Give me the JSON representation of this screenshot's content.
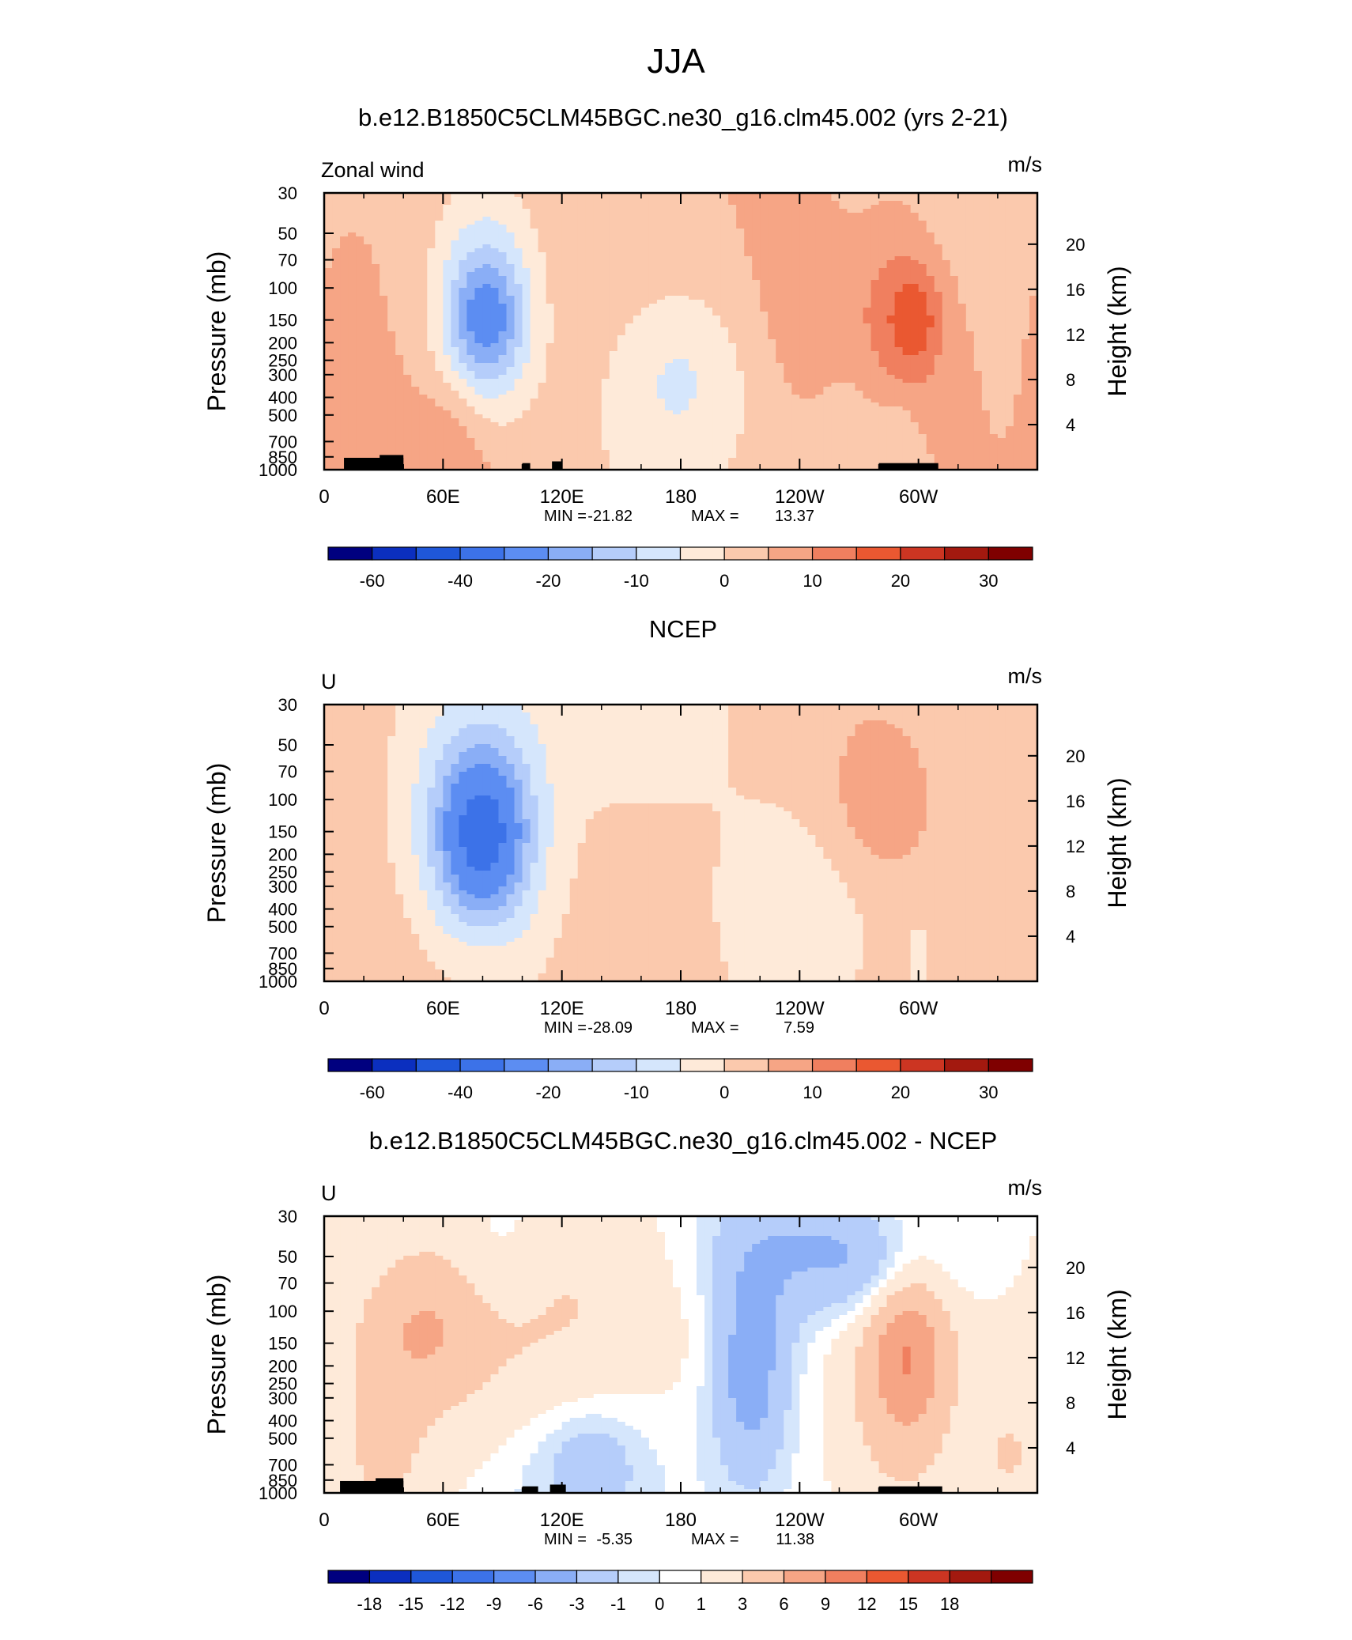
{
  "figure": {
    "title": "JJA"
  },
  "palettes": {
    "full": [
      "#00007f",
      "#0b2fbf",
      "#1f57d9",
      "#3c72e8",
      "#5c8df2",
      "#8aaef6",
      "#b5cdfa",
      "#d5e6fc",
      "#feead9",
      "#fbc9ad",
      "#f6a585",
      "#f07f5f",
      "#ea5831",
      "#cc3522",
      "#a3190f",
      "#7f0000"
    ],
    "diff": [
      "#00007f",
      "#0b2fbf",
      "#1f57d9",
      "#3c72e8",
      "#5c8df2",
      "#8aaef6",
      "#b5cdfa",
      "#d5e6fc",
      "#ffffff",
      "#feead9",
      "#fbc9ad",
      "#f6a585",
      "#f07f5f",
      "#ea5831",
      "#cc3522",
      "#a3190f",
      "#7f0000"
    ]
  },
  "axes": {
    "x_ticks": [
      "0",
      "60E",
      "120E",
      "180",
      "120W",
      "60W"
    ],
    "pressure_ticks": [
      "30",
      "50",
      "70",
      "100",
      "150",
      "200",
      "250",
      "300",
      "400",
      "500",
      "700",
      "850",
      "1000"
    ],
    "height_ticks": [
      "20",
      "16",
      "12",
      "8",
      "4"
    ],
    "ylabel_left": "Pressure (mb)",
    "ylabel_right": "Height (km)",
    "units": "m/s",
    "min_label": "MIN =",
    "max_label": "MAX ="
  },
  "chart_data": [
    {
      "type": "heatmap",
      "title": "b.e12.B1850C5CLM45BGC.ne30_g16.clm45.002 (yrs 2-21)",
      "left_label": "Zonal wind",
      "min": "-21.82",
      "max": "13.37",
      "levels": [
        -70,
        -60,
        -50,
        -40,
        -30,
        -20,
        -15,
        -10,
        -5,
        0,
        5,
        10,
        15,
        20,
        25,
        30,
        35
      ],
      "colorbar_labels": [
        "-60",
        "-40",
        "-20",
        "-10",
        "0",
        "10",
        "20",
        "30"
      ],
      "colorbar_label_edges": [
        1,
        3,
        5,
        7,
        9,
        11,
        13,
        15
      ],
      "xlim": [
        0,
        360
      ],
      "ylim_mb": [
        1000,
        30
      ],
      "field": {
        "bg": 5,
        "blobs": [
          [
            0,
            180,
            37,
            260,
            0.5,
            -8
          ],
          [
            0,
            335,
            37,
            25,
            0.7,
            -5
          ],
          [
            0,
            82,
            30,
            120,
            0.8,
            -8
          ],
          [
            0,
            270,
            25,
            200,
            0.8,
            -6
          ],
          [
            0,
            80,
            26,
            150,
            0.55,
            -13
          ],
          [
            0,
            82,
            17,
            150,
            0.3,
            -11
          ],
          [
            0,
            263,
            40,
            150,
            0.6,
            6
          ],
          [
            0,
            290,
            22,
            150,
            0.45,
            9
          ],
          [
            0,
            300,
            11,
            150,
            0.25,
            6
          ],
          [
            0,
            70,
            40,
            650,
            0.9,
            4
          ],
          [
            0,
            65,
            16,
            700,
            0.35,
            4
          ],
          [
            0,
            10,
            12,
            160,
            0.5,
            4
          ],
          [
            0,
            170,
            60,
            880,
            0.6,
            -5
          ],
          [
            0,
            290,
            10,
            780,
            0.3,
            -4
          ],
          [
            0,
            240,
            15,
            900,
            0.12,
            -3
          ]
        ],
        "terrain": [
          [
            10,
            40,
            860
          ],
          [
            28,
            40,
            830
          ],
          [
            100,
            104,
            920
          ],
          [
            115,
            120,
            900
          ],
          [
            280,
            310,
            920
          ]
        ]
      }
    },
    {
      "type": "heatmap",
      "title": "NCEP",
      "left_label": "U",
      "min": "-28.09",
      "max": "7.59",
      "levels": [
        -70,
        -60,
        -50,
        -40,
        -30,
        -20,
        -15,
        -10,
        -5,
        0,
        5,
        10,
        15,
        20,
        25,
        30,
        35
      ],
      "colorbar_labels": [
        "-60",
        "-40",
        "-20",
        "-10",
        "0",
        "10",
        "20",
        "30"
      ],
      "colorbar_label_edges": [
        1,
        3,
        5,
        7,
        9,
        11,
        13,
        15
      ],
      "xlim": [
        0,
        360
      ],
      "ylim_mb": [
        1000,
        30
      ],
      "field": {
        "bg": 3,
        "blobs": [
          [
            0,
            160,
            50,
            30,
            0.6,
            -6
          ],
          [
            0,
            75,
            40,
            165,
            1.0,
            -12
          ],
          [
            0,
            80,
            26,
            160,
            0.55,
            -16
          ],
          [
            0,
            80,
            18,
            155,
            0.35,
            -14
          ],
          [
            0,
            260,
            38,
            190,
            0.85,
            -6
          ],
          [
            0,
            235,
            45,
            400,
            0.8,
            -6
          ],
          [
            0,
            260,
            40,
            130,
            0.9,
            7
          ],
          [
            0,
            280,
            22,
            110,
            0.35,
            6
          ],
          [
            0,
            60,
            40,
            700,
            0.8,
            4
          ],
          [
            0,
            80,
            15,
            720,
            0.3,
            3
          ],
          [
            0,
            300,
            5,
            740,
            0.2,
            -5
          ]
        ],
        "terrain": []
      }
    },
    {
      "type": "heatmap",
      "title": "b.e12.B1850C5CLM45BGC.ne30_g16.clm45.002 - NCEP",
      "left_label": "U",
      "min": "-5.35",
      "max": "11.38",
      "levels": [
        -21,
        -18,
        -15,
        -12,
        -9,
        -6,
        -3,
        -1,
        0,
        1,
        3,
        6,
        9,
        12,
        15,
        18,
        21
      ],
      "colorbar_labels": [
        "-18",
        "-15",
        "-12",
        "-9",
        "-6",
        "-3",
        "-1",
        "0",
        "1",
        "3",
        "6",
        "9",
        "12",
        "15",
        "18"
      ],
      "colorbar_label_edges": [
        1,
        2,
        3,
        4,
        5,
        6,
        7,
        8,
        9,
        10,
        11,
        12,
        13,
        14,
        15
      ],
      "xlim": [
        0,
        360
      ],
      "ylim_mb": [
        1000,
        30
      ],
      "field": {
        "bg": 0.5,
        "blobs": [
          [
            0,
            90,
            90,
            160,
            0.9,
            4
          ],
          [
            0,
            50,
            22,
            130,
            0.3,
            3
          ],
          [
            0,
            290,
            30,
            160,
            0.9,
            4
          ],
          [
            0,
            295,
            18,
            165,
            0.45,
            5
          ],
          [
            0,
            215,
            20,
            215,
            0.6,
            -5
          ],
          [
            0,
            260,
            65,
            45,
            0.4,
            -4
          ],
          [
            0,
            280,
            25,
            65,
            0.25,
            -2
          ],
          [
            0,
            90,
            25,
            45,
            0.45,
            -2
          ],
          [
            0,
            120,
            60,
            600,
            0.6,
            -3
          ],
          [
            0,
            135,
            20,
            700,
            0.25,
            -2
          ],
          [
            0,
            30,
            20,
            600,
            0.5,
            2
          ],
          [
            0,
            345,
            15,
            650,
            0.3,
            2
          ]
        ],
        "terrain": [
          [
            8,
            40,
            860
          ],
          [
            26,
            40,
            830
          ],
          [
            100,
            108,
            920
          ],
          [
            114,
            122,
            900
          ],
          [
            280,
            312,
            920
          ]
        ]
      }
    }
  ]
}
